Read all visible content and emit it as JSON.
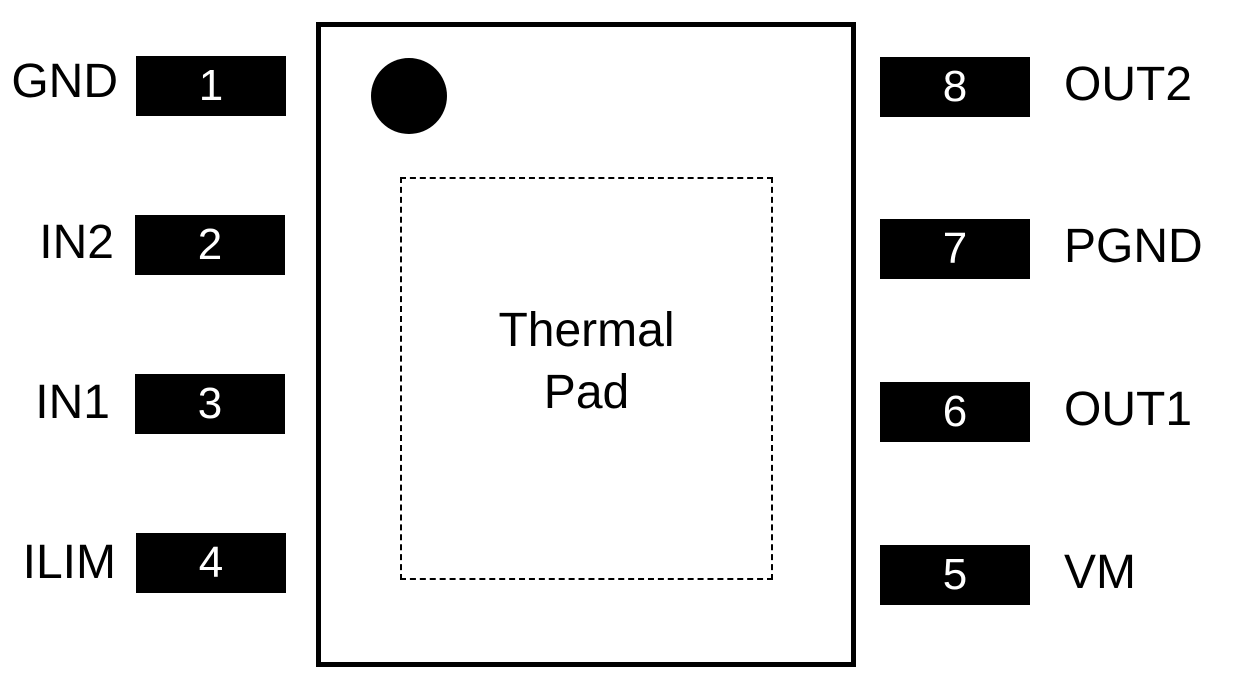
{
  "package": {
    "thermal_pad_label_line1": "Thermal",
    "thermal_pad_label_line2": "Pad"
  },
  "pins_left": [
    {
      "number": "1",
      "name": "GND"
    },
    {
      "number": "2",
      "name": "IN2"
    },
    {
      "number": "3",
      "name": "IN1"
    },
    {
      "number": "4",
      "name": "ILIM"
    }
  ],
  "pins_right": [
    {
      "number": "8",
      "name": "OUT2"
    },
    {
      "number": "7",
      "name": "PGND"
    },
    {
      "number": "6",
      "name": "OUT1"
    },
    {
      "number": "5",
      "name": "VM"
    }
  ],
  "colors": {
    "foreground": "#000000",
    "background": "#ffffff"
  }
}
